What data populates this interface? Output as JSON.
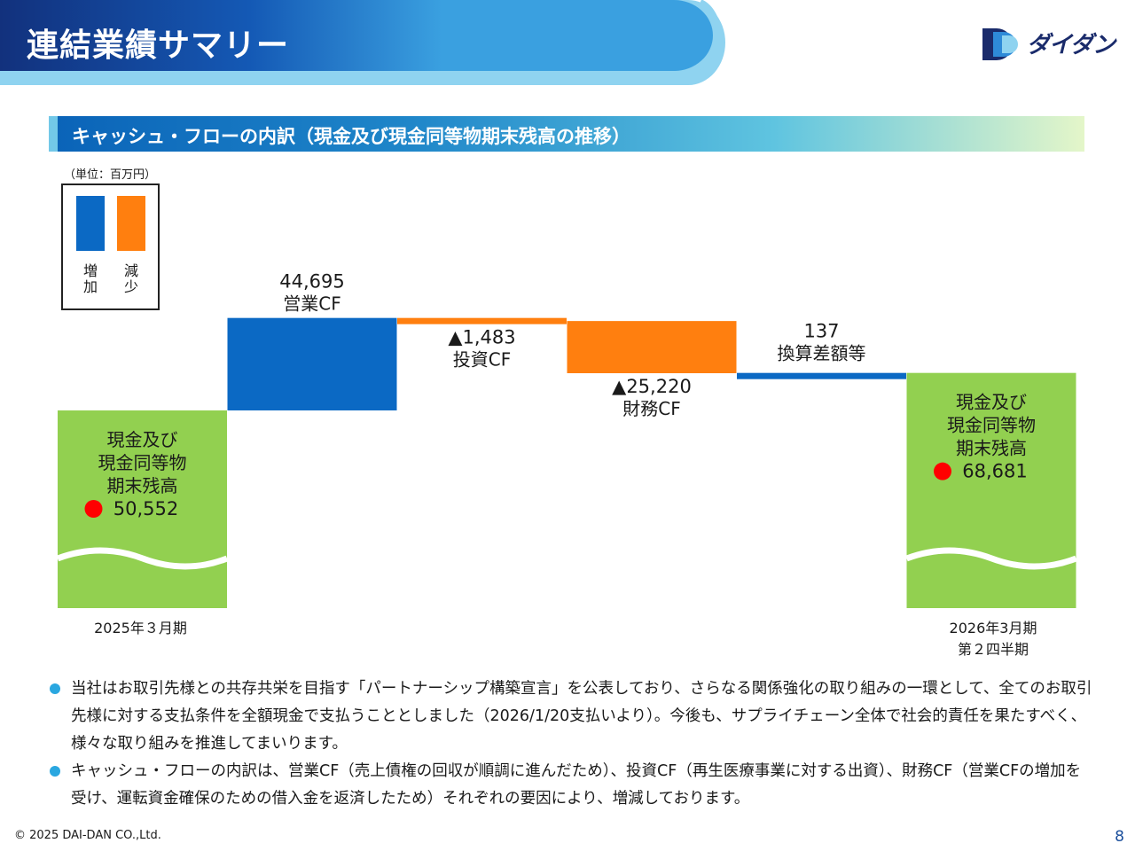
{
  "header": {
    "title": "連結業績サマリー",
    "logo": "ダイダン"
  },
  "section": {
    "title": "キャッシュ・フローの内訳（現金及び現金同等物期末残高の推移）"
  },
  "unit": "（単位：百万円）",
  "legend": {
    "increase_label": "増加",
    "decrease_label": "減少",
    "increase_color": "#0b69c4",
    "decrease_color": "#ff7f0f"
  },
  "chart_data": {
    "type": "waterfall",
    "title": "キャッシュ・フローの内訳（現金及び現金同等物期末残高の推移）",
    "unit": "百万円",
    "colors": {
      "balance": "#92d050",
      "increase": "#0b69c4",
      "decrease": "#ff7f0f",
      "marker": "#ff0000"
    },
    "steps": [
      {
        "kind": "balance",
        "value": 50552,
        "display": "50,552",
        "lines": [
          "現金及び",
          "現金同等物",
          "期末残高"
        ],
        "xlabel": [
          "2025年３月期"
        ]
      },
      {
        "kind": "delta",
        "value": 44695,
        "display": "44,695",
        "name": "営業CF"
      },
      {
        "kind": "delta",
        "value": -1483,
        "display": "▲1,483",
        "name": "投資CF"
      },
      {
        "kind": "delta",
        "value": -25220,
        "display": "▲25,220",
        "name": "財務CF"
      },
      {
        "kind": "delta",
        "value": 137,
        "display": "137",
        "name": "換算差額等"
      },
      {
        "kind": "balance",
        "value": 68681,
        "display": "68,681",
        "lines": [
          "現金及び",
          "現金同等物",
          "期末残高"
        ],
        "xlabel": [
          "2026年3月期",
          "第２四半期"
        ]
      }
    ]
  },
  "notes": [
    "当社はお取引先様との共存共栄を目指す「パートナーシップ構築宣言」を公表しており、さらなる関係強化の取り組みの一環として、全てのお取引先様に対する支払条件を全額現金で支払うこととしました（2026/1/20支払いより）。今後も、サプライチェーン全体で社会的責任を果たすべく、様々な取り組みを推進してまいります。",
    "キャッシュ・フローの内訳は、営業CF（売上債権の回収が順調に進んだため）、投資CF（再生医療事業に対する出資）、財務CF（営業CFの増加を受け、運転資金確保のための借入金を返済したため）それぞれの要因により、増減しております。"
  ],
  "footer": {
    "copyright": "© 2025 DAI-DAN CO.,Ltd.",
    "page": "8"
  }
}
